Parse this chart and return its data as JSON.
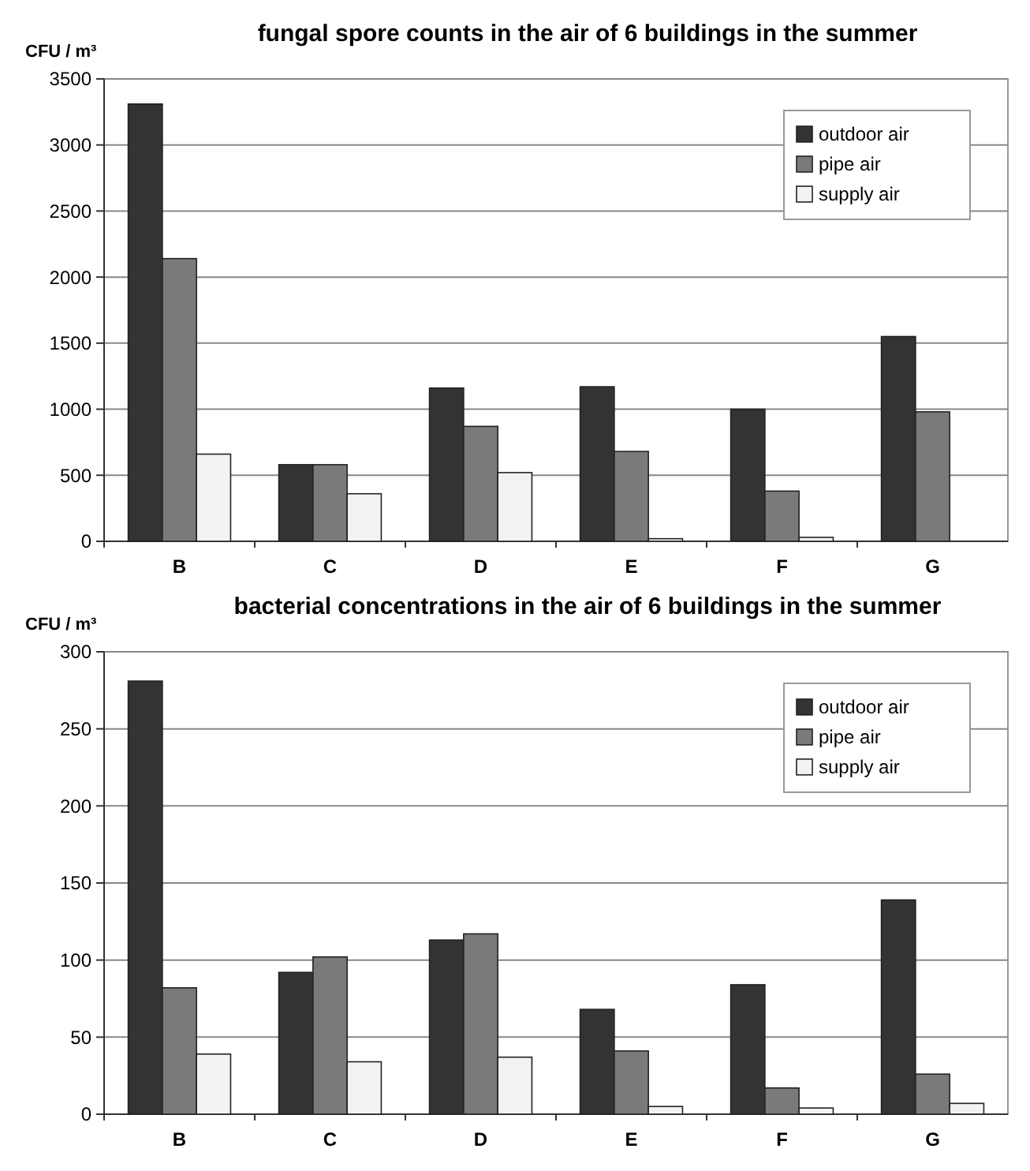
{
  "chart_data": [
    {
      "type": "bar",
      "title": "fungal spore counts in the air of 6 buildings in the summer",
      "ylabel": "CFU / m³",
      "categories": [
        "B",
        "C",
        "D",
        "E",
        "F",
        "G"
      ],
      "series": [
        {
          "name": "outdoor air",
          "color": "#333333",
          "values": [
            3310,
            580,
            1160,
            1170,
            1000,
            1550
          ]
        },
        {
          "name": "pipe air",
          "color": "#7a7a7a",
          "values": [
            2140,
            580,
            870,
            680,
            380,
            980
          ]
        },
        {
          "name": "supply air",
          "color": "#f2f2f2",
          "values": [
            660,
            360,
            520,
            20,
            30,
            null
          ]
        }
      ],
      "ylim": [
        0,
        3500
      ],
      "yticks": [
        0,
        500,
        1000,
        1500,
        2000,
        2500,
        3000,
        3500
      ],
      "grid": "y",
      "legend": "top right"
    },
    {
      "type": "bar",
      "title": "bacterial concentrations in the air of 6 buildings in the summer",
      "ylabel": "CFU / m³",
      "categories": [
        "B",
        "C",
        "D",
        "E",
        "F",
        "G"
      ],
      "series": [
        {
          "name": "outdoor air",
          "color": "#333333",
          "values": [
            281,
            92,
            113,
            68,
            84,
            139
          ]
        },
        {
          "name": "pipe air",
          "color": "#7a7a7a",
          "values": [
            82,
            102,
            117,
            41,
            17,
            26
          ]
        },
        {
          "name": "supply air",
          "color": "#f2f2f2",
          "values": [
            39,
            34,
            37,
            5,
            4,
            7
          ]
        }
      ],
      "ylim": [
        0,
        300
      ],
      "yticks": [
        0,
        50,
        100,
        150,
        200,
        250,
        300
      ],
      "grid": "y",
      "legend": "top right"
    }
  ]
}
